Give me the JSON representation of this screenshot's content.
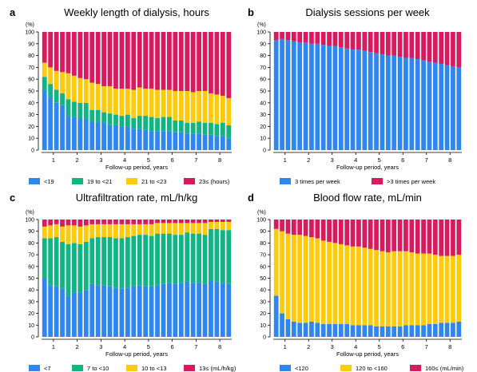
{
  "colors": {
    "blue": "#2E86EE",
    "green": "#11B583",
    "yellow": "#FBCB0C",
    "magenta": "#D81A5E"
  },
  "chart_data": [
    {
      "letter": "a",
      "type": "bar",
      "stacked": true,
      "title": "Weekly length of dialysis, hours",
      "unit": "(%)",
      "xlabel": "Follow-up period, years",
      "ylim": [
        0,
        100
      ],
      "yticks": [
        "0",
        "10",
        "20",
        "30",
        "40",
        "50",
        "60",
        "70",
        "80",
        "90",
        "100"
      ],
      "x_tick_labels": [
        "1",
        "2",
        "3",
        "4",
        "5",
        "6",
        "7",
        "8"
      ],
      "bars_per_year": 4,
      "legend": [
        "<19",
        "19 to <21",
        "21 to <23",
        "23≤ (hours)"
      ],
      "series": [
        {
          "name": "<19",
          "color_key": "blue",
          "values": [
            50,
            45,
            40,
            38,
            29,
            28,
            27,
            26,
            24,
            23,
            23,
            21,
            21,
            20,
            20,
            18,
            18,
            17,
            16,
            16,
            16,
            16,
            15,
            15,
            14,
            14,
            14,
            13,
            13,
            12,
            12,
            10
          ]
        },
        {
          "name": "19 to <21",
          "color_key": "green",
          "values": [
            12,
            11,
            11,
            10,
            14,
            13,
            13,
            14,
            10,
            11,
            9,
            10,
            9,
            9,
            10,
            9,
            11,
            12,
            12,
            11,
            12,
            12,
            10,
            10,
            9,
            9,
            10,
            10,
            10,
            10,
            11,
            11
          ]
        },
        {
          "name": "21 to <23",
          "color_key": "yellow",
          "values": [
            12,
            14,
            16,
            18,
            22,
            22,
            21,
            20,
            23,
            22,
            22,
            23,
            22,
            23,
            22,
            24,
            24,
            23,
            24,
            24,
            23,
            23,
            25,
            25,
            27,
            26,
            26,
            27,
            25,
            25,
            23,
            23
          ]
        },
        {
          "name": "23≤ (hours)",
          "color_key": "magenta",
          "values": [
            26,
            30,
            33,
            34,
            35,
            37,
            39,
            40,
            43,
            44,
            46,
            46,
            48,
            48,
            48,
            49,
            47,
            48,
            48,
            49,
            49,
            49,
            50,
            50,
            50,
            51,
            50,
            50,
            52,
            53,
            54,
            56
          ]
        }
      ]
    },
    {
      "letter": "b",
      "type": "bar",
      "stacked": true,
      "title": "Dialysis sessions per week",
      "unit": "(%)",
      "xlabel": "Follow-up period, years",
      "ylim": [
        0,
        100
      ],
      "yticks": [
        "0",
        "10",
        "20",
        "30",
        "40",
        "50",
        "60",
        "70",
        "80",
        "90",
        "100"
      ],
      "x_tick_labels": [
        "1",
        "2",
        "3",
        "4",
        "5",
        "6",
        "7",
        "8"
      ],
      "bars_per_year": 4,
      "legend": [
        "3 times per week",
        ">3 times per week"
      ],
      "series": [
        {
          "name": "3 times per week",
          "color_key": "blue",
          "values": [
            93,
            94,
            93,
            92,
            91,
            91,
            90,
            90,
            89,
            88,
            88,
            87,
            86,
            85,
            85,
            84,
            83,
            82,
            81,
            80,
            80,
            79,
            78,
            78,
            77,
            76,
            75,
            74,
            73,
            72,
            71,
            70
          ]
        },
        {
          "name": ">3 times per week",
          "color_key": "magenta",
          "values": [
            7,
            6,
            7,
            8,
            9,
            9,
            10,
            10,
            11,
            12,
            12,
            13,
            14,
            15,
            15,
            16,
            17,
            18,
            19,
            20,
            20,
            21,
            22,
            22,
            23,
            24,
            25,
            26,
            27,
            28,
            29,
            30
          ]
        }
      ]
    },
    {
      "letter": "c",
      "type": "bar",
      "stacked": true,
      "title": "Ultrafiltration rate, mL/h/kg",
      "unit": "(%)",
      "xlabel": "Follow-up period, years",
      "ylim": [
        0,
        100
      ],
      "yticks": [
        "0",
        "10",
        "20",
        "30",
        "40",
        "50",
        "60",
        "70",
        "80",
        "90",
        "100"
      ],
      "x_tick_labels": [
        "1",
        "2",
        "3",
        "4",
        "5",
        "6",
        "7",
        "8"
      ],
      "bars_per_year": 4,
      "legend": [
        "<7",
        "7 to <10",
        "10 to <13",
        "13≤ (mL/h/kg)"
      ],
      "series": [
        {
          "name": "<7",
          "color_key": "blue",
          "values": [
            50,
            44,
            43,
            41,
            35,
            38,
            38,
            40,
            45,
            44,
            44,
            43,
            42,
            41,
            42,
            43,
            44,
            43,
            43,
            44,
            45,
            46,
            45,
            46,
            47,
            46,
            46,
            45,
            48,
            47,
            46,
            45
          ]
        },
        {
          "name": "7 to <10",
          "color_key": "green",
          "values": [
            34,
            40,
            42,
            40,
            44,
            42,
            41,
            41,
            39,
            41,
            41,
            42,
            42,
            43,
            43,
            43,
            43,
            44,
            43,
            44,
            43,
            42,
            42,
            41,
            42,
            42,
            42,
            42,
            44,
            45,
            45,
            46
          ]
        },
        {
          "name": "10 to <13",
          "color_key": "yellow",
          "values": [
            10,
            11,
            11,
            13,
            16,
            15,
            15,
            14,
            12,
            11,
            11,
            11,
            12,
            12,
            11,
            10,
            9,
            9,
            10,
            9,
            9,
            9,
            10,
            10,
            8,
            9,
            9,
            10,
            6,
            6,
            7,
            7
          ]
        },
        {
          "name": "13≤ (mL/h/kg)",
          "color_key": "magenta",
          "values": [
            6,
            5,
            4,
            6,
            5,
            5,
            6,
            5,
            4,
            4,
            4,
            4,
            4,
            4,
            4,
            4,
            4,
            4,
            4,
            3,
            3,
            3,
            3,
            3,
            3,
            3,
            3,
            3,
            2,
            2,
            2,
            2
          ]
        }
      ]
    },
    {
      "letter": "d",
      "type": "bar",
      "stacked": true,
      "title": "Blood flow rate, mL/min",
      "unit": "(%)",
      "xlabel": "Follow-up period, years",
      "ylim": [
        0,
        100
      ],
      "yticks": [
        "0",
        "10",
        "20",
        "30",
        "40",
        "50",
        "60",
        "70",
        "80",
        "90",
        "100"
      ],
      "x_tick_labels": [
        "1",
        "2",
        "3",
        "4",
        "5",
        "6",
        "7",
        "8"
      ],
      "bars_per_year": 4,
      "legend": [
        "<120",
        "120 to <160",
        "160≤ (mL/min)"
      ],
      "series": [
        {
          "name": "<120",
          "color_key": "blue",
          "values": [
            35,
            20,
            15,
            13,
            12,
            12,
            13,
            12,
            11,
            11,
            11,
            11,
            11,
            10,
            10,
            10,
            10,
            9,
            9,
            9,
            9,
            9,
            10,
            10,
            10,
            10,
            11,
            11,
            12,
            12,
            12,
            13
          ]
        },
        {
          "name": "120 to <160",
          "color_key": "yellow",
          "values": [
            57,
            70,
            73,
            74,
            75,
            74,
            72,
            72,
            71,
            70,
            69,
            68,
            67,
            67,
            67,
            66,
            65,
            65,
            64,
            63,
            64,
            64,
            63,
            62,
            61,
            61,
            60,
            59,
            57,
            57,
            57,
            57
          ]
        },
        {
          "name": "160≤ (mL/min)",
          "color_key": "magenta",
          "values": [
            8,
            10,
            12,
            13,
            13,
            14,
            15,
            16,
            18,
            19,
            20,
            21,
            22,
            23,
            23,
            24,
            25,
            26,
            27,
            28,
            27,
            27,
            27,
            28,
            29,
            29,
            29,
            30,
            31,
            31,
            31,
            30
          ]
        }
      ]
    }
  ]
}
